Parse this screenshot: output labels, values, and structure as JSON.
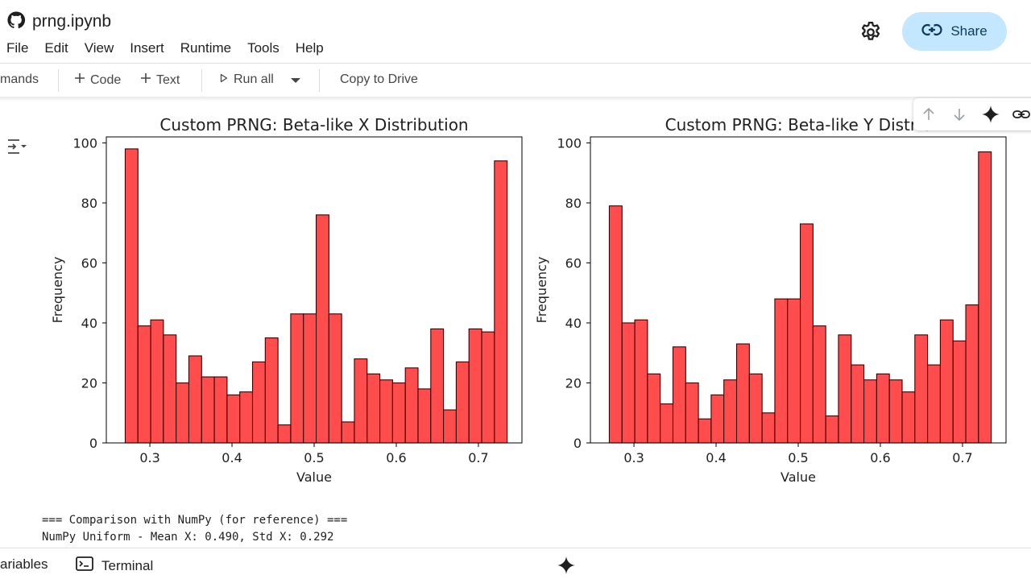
{
  "header": {
    "title": "prng.ipynb",
    "menu": [
      "File",
      "Edit",
      "View",
      "Insert",
      "Runtime",
      "Tools",
      "Help"
    ],
    "share_label": "Share"
  },
  "toolbar": {
    "commands_label": "mands",
    "code_label": "Code",
    "text_label": "Text",
    "run_all_label": "Run all",
    "copy_drive_label": "Copy to Drive"
  },
  "output": {
    "line1": "=== Comparison with NumPy (for reference) ===",
    "line2": "NumPy Uniform - Mean X: 0.490, Std X: 0.292"
  },
  "bottombar": {
    "variables_label": "ariables",
    "terminal_label": "Terminal"
  },
  "colors": {
    "bar_fill": "#ff4d4d",
    "bar_edge": "#3a0000",
    "share_bg": "#c2e7ff"
  },
  "icons": [
    "github-icon",
    "gear-icon",
    "link-icon",
    "plus-icon",
    "play-icon",
    "dropdown-icon",
    "arrow-up-icon",
    "arrow-down-icon",
    "gemini-icon",
    "output-toggle-icon",
    "terminal-icon"
  ],
  "chart_data": [
    {
      "type": "bar",
      "title": "Custom PRNG: Beta-like X Distribution",
      "xlabel": "Value",
      "ylabel": "Frequency",
      "xlim": [
        0.247,
        0.753
      ],
      "ylim": [
        0,
        102
      ],
      "bin_start": 0.27,
      "bin_width": 0.0155,
      "values": [
        98,
        39,
        41,
        36,
        20,
        29,
        22,
        22,
        16,
        17,
        27,
        35,
        6,
        43,
        43,
        76,
        43,
        7,
        28,
        23,
        21,
        20,
        25,
        18,
        38,
        11,
        27,
        38,
        37,
        94
      ],
      "xticks": [
        0.3,
        0.4,
        0.5,
        0.6,
        0.7
      ],
      "xtick_labels": [
        "0.3",
        "0.4",
        "0.5",
        "0.6",
        "0.7"
      ],
      "yticks": [
        0,
        20,
        40,
        60,
        80,
        100
      ],
      "ytick_labels": [
        "0",
        "20",
        "40",
        "60",
        "80",
        "100"
      ]
    },
    {
      "type": "bar",
      "title": "Custom PRNG: Beta-like Y Distrib",
      "xlabel": "Value",
      "ylabel": "Frequency",
      "xlim": [
        0.247,
        0.753
      ],
      "ylim": [
        0,
        102
      ],
      "bin_start": 0.27,
      "bin_width": 0.0155,
      "values": [
        79,
        40,
        41,
        23,
        13,
        32,
        20,
        8,
        16,
        21,
        33,
        23,
        10,
        48,
        48,
        73,
        39,
        9,
        36,
        26,
        21,
        23,
        21,
        17,
        36,
        26,
        41,
        34,
        46,
        97
      ],
      "xticks": [
        0.3,
        0.4,
        0.5,
        0.6,
        0.7
      ],
      "xtick_labels": [
        "0.3",
        "0.4",
        "0.5",
        "0.6",
        "0.7"
      ],
      "yticks": [
        0,
        20,
        40,
        60,
        80,
        100
      ],
      "ytick_labels": [
        "0",
        "20",
        "40",
        "60",
        "80",
        "100"
      ]
    }
  ]
}
